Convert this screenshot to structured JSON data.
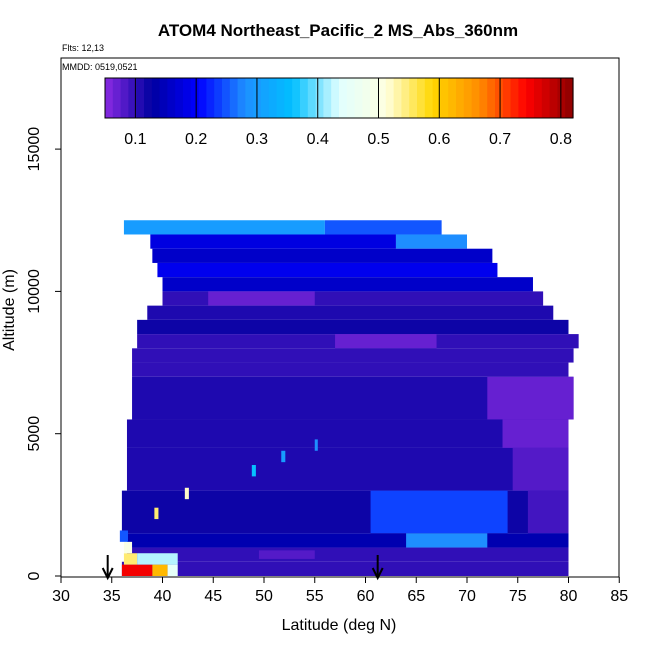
{
  "chart_data": {
    "type": "heatmap",
    "title": "ATOM4 Northeast_Pacific_2 MS_Abs_360nm",
    "annotations": {
      "flights": "Flts: 12,13",
      "dates": "MMDD: 0519,0521"
    },
    "xlabel": "Latitude (deg N)",
    "ylabel": "Altitude (m)",
    "xlim": [
      30,
      85
    ],
    "ylim": [
      0,
      17500
    ],
    "xticks": [
      "30",
      "35",
      "40",
      "45",
      "50",
      "55",
      "60",
      "65",
      "70",
      "75",
      "80",
      "85"
    ],
    "yticks": [
      "0",
      "5000",
      "10000",
      "15000"
    ],
    "colorbar": {
      "range": [
        0.05,
        0.82
      ],
      "ticks": [
        "0.1",
        "0.2",
        "0.3",
        "0.4",
        "0.5",
        "0.6",
        "0.7",
        "0.8"
      ],
      "colors": [
        "#8a2be2",
        "#0000a0",
        "#0000ff",
        "#1e90ff",
        "#00bfff",
        "#e0ffff",
        "#ffffe0",
        "#ffd700",
        "#ff8c00",
        "#ff0000",
        "#8b0000"
      ]
    },
    "arrows_at_latitude": [
      34.6,
      61.2
    ],
    "bands": [
      {
        "alt": [
          12000,
          12500
        ],
        "lat": [
          36.2,
          56.0
        ],
        "value": 0.3
      },
      {
        "alt": [
          12000,
          12500
        ],
        "lat": [
          56.0,
          67.5
        ],
        "value": 0.25
      },
      {
        "alt": [
          11500,
          12000
        ],
        "lat": [
          38.8,
          63.0
        ],
        "value": 0.18
      },
      {
        "alt": [
          11500,
          12000
        ],
        "lat": [
          63.0,
          70.0
        ],
        "value": 0.28
      },
      {
        "alt": [
          11000,
          11500
        ],
        "lat": [
          39.0,
          72.5
        ],
        "value": 0.16
      },
      {
        "alt": [
          10500,
          11000
        ],
        "lat": [
          39.5,
          73.0
        ],
        "value": 0.19
      },
      {
        "alt": [
          10000,
          10500
        ],
        "lat": [
          40.0,
          76.5
        ],
        "value": 0.16
      },
      {
        "alt": [
          9500,
          10000
        ],
        "lat": [
          40.0,
          77.5
        ],
        "value": 0.1
      },
      {
        "alt": [
          9500,
          10000
        ],
        "lat": [
          44.5,
          55.0
        ],
        "value": 0.07
      },
      {
        "alt": [
          9000,
          9500
        ],
        "lat": [
          38.5,
          78.5
        ],
        "value": 0.11
      },
      {
        "alt": [
          8500,
          9000
        ],
        "lat": [
          37.5,
          80.0
        ],
        "value": 0.12
      },
      {
        "alt": [
          8000,
          8500
        ],
        "lat": [
          37.5,
          81.0
        ],
        "value": 0.1
      },
      {
        "alt": [
          8000,
          8500
        ],
        "lat": [
          57.0,
          67.0
        ],
        "value": 0.07
      },
      {
        "alt": [
          7500,
          8000
        ],
        "lat": [
          37.0,
          80.5
        ],
        "value": 0.1
      },
      {
        "alt": [
          7000,
          7500
        ],
        "lat": [
          37.0,
          80.0
        ],
        "value": 0.1
      },
      {
        "alt": [
          5500,
          7000
        ],
        "lat": [
          37.0,
          80.5
        ],
        "value": 0.11
      },
      {
        "alt": [
          5500,
          7000
        ],
        "lat": [
          72.0,
          80.5
        ],
        "value": 0.07
      },
      {
        "alt": [
          4500,
          5500
        ],
        "lat": [
          36.5,
          80.0
        ],
        "value": 0.11
      },
      {
        "alt": [
          4500,
          5500
        ],
        "lat": [
          73.5,
          80.0
        ],
        "value": 0.07
      },
      {
        "alt": [
          3000,
          4500
        ],
        "lat": [
          36.5,
          80.0
        ],
        "value": 0.11
      },
      {
        "alt": [
          3000,
          4500
        ],
        "lat": [
          74.5,
          80.0
        ],
        "value": 0.08
      },
      {
        "alt": [
          1500,
          3000
        ],
        "lat": [
          36.0,
          80.0
        ],
        "value": 0.12
      },
      {
        "alt": [
          1500,
          3000
        ],
        "lat": [
          60.5,
          74.0
        ],
        "value": 0.24
      },
      {
        "alt": [
          1500,
          3000
        ],
        "lat": [
          76.0,
          80.0
        ],
        "value": 0.09
      },
      {
        "alt": [
          1000,
          1500
        ],
        "lat": [
          36.5,
          80.0
        ],
        "value": 0.14
      },
      {
        "alt": [
          1000,
          1500
        ],
        "lat": [
          64.0,
          72.0
        ],
        "value": 0.28
      },
      {
        "alt": [
          500,
          1000
        ],
        "lat": [
          36.5,
          80.0
        ],
        "value": 0.1
      },
      {
        "alt": [
          0,
          500
        ],
        "lat": [
          36.0,
          80.0
        ],
        "value": 0.1
      }
    ],
    "hotspots": [
      {
        "alt": [
          0,
          400
        ],
        "lat": [
          36.0,
          39.0
        ],
        "value": 0.75
      },
      {
        "alt": [
          0,
          400
        ],
        "lat": [
          39.0,
          40.5
        ],
        "value": 0.62
      },
      {
        "alt": [
          0,
          400
        ],
        "lat": [
          40.5,
          41.5
        ],
        "value": 0.45
      },
      {
        "alt": [
          400,
          800
        ],
        "lat": [
          36.2,
          37.5
        ],
        "value": 0.55
      },
      {
        "alt": [
          400,
          800
        ],
        "lat": [
          37.5,
          41.5
        ],
        "value": 0.42
      },
      {
        "alt": [
          800,
          1200
        ],
        "lat": [
          36.2,
          37.0
        ],
        "value": 0.5
      },
      {
        "alt": [
          1200,
          1600
        ],
        "lat": [
          35.8,
          36.6
        ],
        "value": 0.25
      },
      {
        "alt": [
          2000,
          2400
        ],
        "lat": [
          39.2,
          39.6
        ],
        "value": 0.55
      },
      {
        "alt": [
          2700,
          3100
        ],
        "lat": [
          42.2,
          42.6
        ],
        "value": 0.52
      },
      {
        "alt": [
          3500,
          3900
        ],
        "lat": [
          48.8,
          49.2
        ],
        "value": 0.36
      },
      {
        "alt": [
          4000,
          4400
        ],
        "lat": [
          51.7,
          52.1
        ],
        "value": 0.3
      },
      {
        "alt": [
          4400,
          4800
        ],
        "lat": [
          55.0,
          55.3
        ],
        "value": 0.28
      },
      {
        "alt": [
          600,
          900
        ],
        "lat": [
          49.5,
          55.0
        ],
        "value": 0.08
      }
    ]
  }
}
